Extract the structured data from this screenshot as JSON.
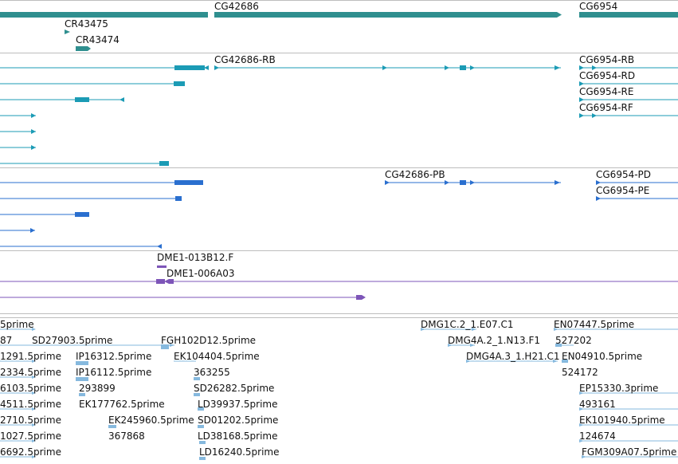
{
  "colors": {
    "gene": "#2f8f8f",
    "transcript": "#1b9bb5",
    "protein": "#2a6fcf",
    "est": "#7d55b8",
    "read": "#86b9de",
    "divider": "#bdbdbd"
  },
  "tracks": {
    "genes": {
      "labels": [
        {
          "text": "CG42686"
        },
        {
          "text": "CG6954"
        },
        {
          "text": "CR43475"
        },
        {
          "text": "CR43474"
        }
      ]
    },
    "transcripts": {
      "labels": [
        {
          "text": "CG42686-RB"
        },
        {
          "text": "CG6954-RB"
        },
        {
          "text": "CG6954-RD"
        },
        {
          "text": "CG6954-RE"
        },
        {
          "text": "CG6954-RF"
        }
      ]
    },
    "proteins": {
      "labels": [
        {
          "text": "CG42686-PB"
        },
        {
          "text": "CG6954-PD"
        },
        {
          "text": "CG6954-PE"
        }
      ]
    },
    "ests": {
      "labels": [
        {
          "text": "DME1-013B12.F"
        },
        {
          "text": "DME1-006A03"
        }
      ]
    },
    "reads": {
      "labels": [
        {
          "text": "5prime"
        },
        {
          "text": "DMG1C.2_1.E07.C1"
        },
        {
          "text": "EN07447.5prime"
        },
        {
          "text": "87"
        },
        {
          "text": "SD27903.5prime"
        },
        {
          "text": "FGH102D12.5prime"
        },
        {
          "text": "DMG4A.2_1.N13.F1"
        },
        {
          "text": "527202"
        },
        {
          "text": "1291.5prime"
        },
        {
          "text": "IP16312.5prime"
        },
        {
          "text": "EK104404.5prime"
        },
        {
          "text": "DMG4A.3_1.H21.C1"
        },
        {
          "text": "EN04910.5prime"
        },
        {
          "text": "2334.5prime"
        },
        {
          "text": "IP16112.5prime"
        },
        {
          "text": "363255"
        },
        {
          "text": "524172"
        },
        {
          "text": "6103.5prime"
        },
        {
          "text": "293899"
        },
        {
          "text": "SD26282.5prime"
        },
        {
          "text": "EP15330.3prime"
        },
        {
          "text": "4511.5prime"
        },
        {
          "text": "EK177762.5prime"
        },
        {
          "text": "LD39937.5prime"
        },
        {
          "text": "493161"
        },
        {
          "text": "2710.5prime"
        },
        {
          "text": "EK245960.5prime"
        },
        {
          "text": "SD01202.5prime"
        },
        {
          "text": "EK101940.5prime"
        },
        {
          "text": "1027.5prime"
        },
        {
          "text": "367868"
        },
        {
          "text": "LD38168.5prime"
        },
        {
          "text": "124674"
        },
        {
          "text": "6692.5prime"
        },
        {
          "text": "LD16240.5prime"
        },
        {
          "text": "FGM309A07.5prime"
        }
      ]
    }
  }
}
